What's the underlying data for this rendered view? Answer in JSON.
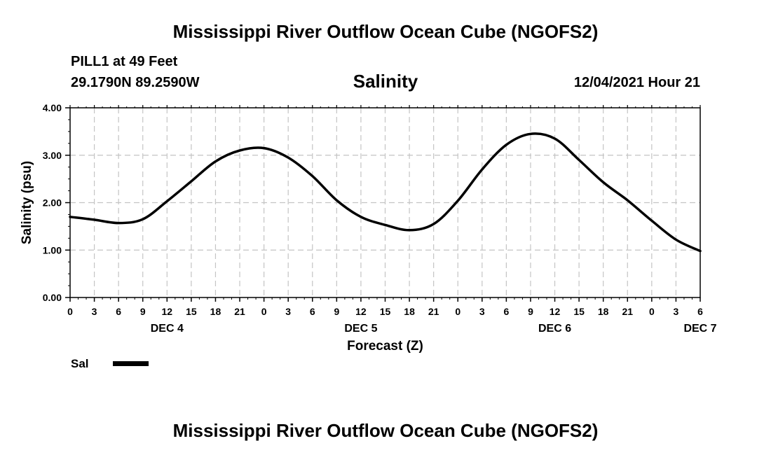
{
  "header": {
    "title": "Mississippi River Outflow Ocean Cube (NGOFS2)",
    "station": "PILL1 at 49 Feet",
    "coords": "29.1790N  89.2590W",
    "variable": "Salinity",
    "datetime": "12/04/2021 Hour 21"
  },
  "footer": {
    "title": "Mississippi River Outflow Ocean Cube (NGOFS2)"
  },
  "legend": {
    "label": "Sal",
    "color": "#000000"
  },
  "chart_data": {
    "type": "line",
    "title": "Salinity",
    "xlabel": "Forecast (Z)",
    "ylabel": "Salinity (psu)",
    "ylim": [
      0,
      4
    ],
    "yticks": [
      "0.00",
      "1.00",
      "2.00",
      "3.00",
      "4.00"
    ],
    "xlim_hours": [
      0,
      78
    ],
    "xticks": [
      "0",
      "3",
      "6",
      "9",
      "12",
      "15",
      "18",
      "21",
      "0",
      "3",
      "6",
      "9",
      "12",
      "15",
      "18",
      "21",
      "0",
      "3",
      "6",
      "9",
      "12",
      "15",
      "18",
      "21",
      "0",
      "3",
      "6"
    ],
    "day_labels": [
      {
        "label": "DEC 4",
        "hour": 12
      },
      {
        "label": "DEC 5",
        "hour": 36
      },
      {
        "label": "DEC 6",
        "hour": 60
      },
      {
        "label": "DEC 7",
        "hour": 78
      }
    ],
    "grid": true,
    "series": [
      {
        "name": "Sal",
        "x_hours": [
          0,
          3,
          6,
          9,
          12,
          15,
          18,
          21,
          24,
          27,
          30,
          33,
          36,
          39,
          42,
          45,
          48,
          51,
          54,
          57,
          60,
          63,
          66,
          69,
          72,
          75,
          78
        ],
        "values": [
          1.7,
          1.64,
          1.57,
          1.65,
          2.03,
          2.45,
          2.87,
          3.1,
          3.15,
          2.95,
          2.56,
          2.05,
          1.7,
          1.53,
          1.42,
          1.55,
          2.04,
          2.7,
          3.22,
          3.45,
          3.35,
          2.9,
          2.43,
          2.05,
          1.62,
          1.22,
          0.98
        ]
      }
    ]
  }
}
